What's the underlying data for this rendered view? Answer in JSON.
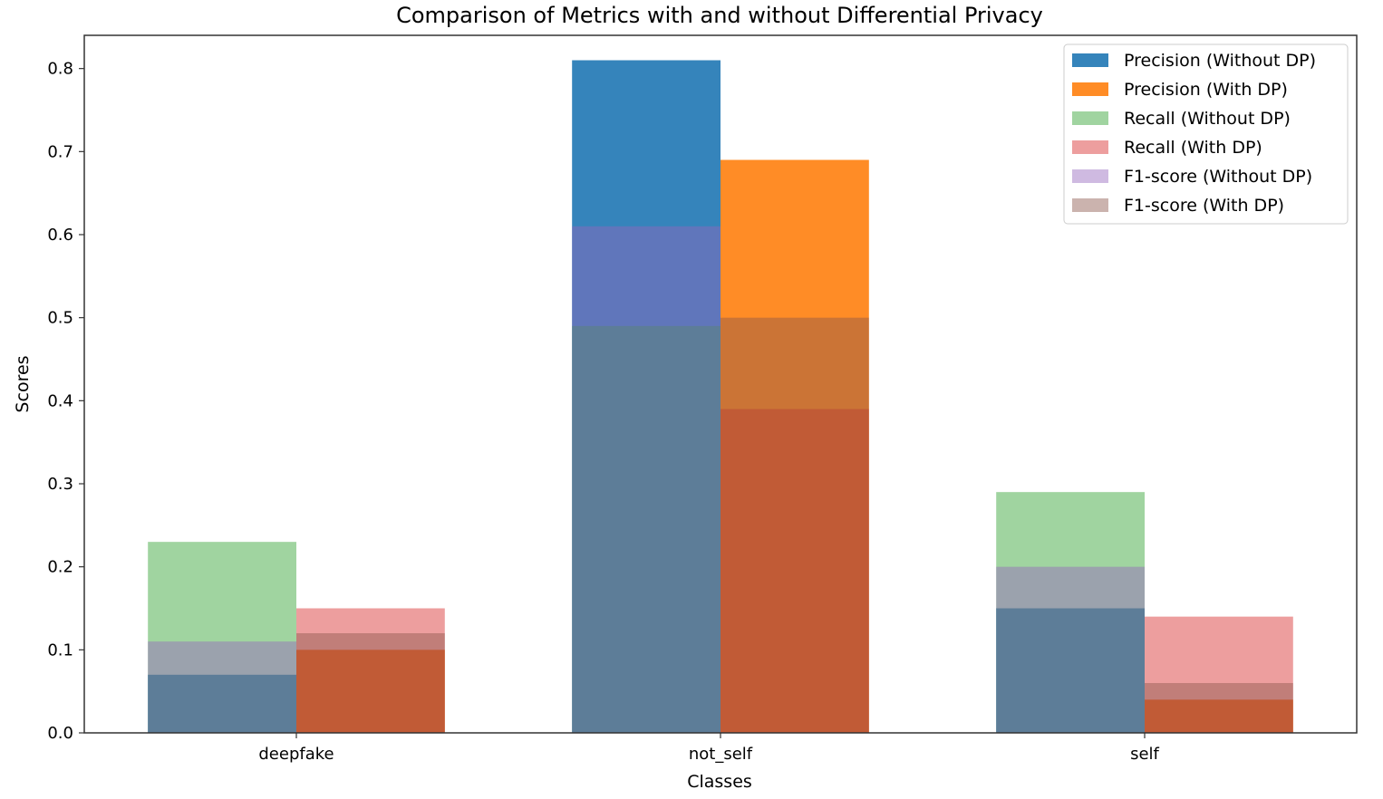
{
  "chart_data": {
    "type": "bar",
    "title": "Comparison of Metrics with and without Differential Privacy",
    "xlabel": "Classes",
    "ylabel": "Scores",
    "categories": [
      "deepfake",
      "not_self",
      "self"
    ],
    "ylim": [
      0,
      0.84
    ],
    "yticks": [
      "0.0",
      "0.1",
      "0.2",
      "0.3",
      "0.4",
      "0.5",
      "0.6",
      "0.7",
      "0.8"
    ],
    "grid": false,
    "legend_position": "top-right",
    "series": [
      {
        "name": "Precision (Without DP)",
        "group": "without_dp",
        "color": "#1f77b4",
        "alpha": 0.9,
        "values": [
          0.07,
          0.81,
          0.15
        ]
      },
      {
        "name": "Precision (With DP)",
        "group": "with_dp",
        "color": "#ff7f0e",
        "alpha": 0.9,
        "values": [
          0.1,
          0.69,
          0.04
        ]
      },
      {
        "name": "Recall (Without DP)",
        "group": "without_dp",
        "color": "#2ca02c",
        "alpha": 0.45,
        "values": [
          0.23,
          0.49,
          0.29
        ]
      },
      {
        "name": "Recall (With DP)",
        "group": "with_dp",
        "color": "#d62728",
        "alpha": 0.45,
        "values": [
          0.15,
          0.39,
          0.14
        ]
      },
      {
        "name": "F1-score (Without DP)",
        "group": "without_dp",
        "color": "#9467bd",
        "alpha": 0.45,
        "values": [
          0.11,
          0.61,
          0.2
        ]
      },
      {
        "name": "F1-score (With DP)",
        "group": "with_dp",
        "color": "#8c564b",
        "alpha": 0.45,
        "values": [
          0.12,
          0.5,
          0.06
        ]
      }
    ]
  }
}
